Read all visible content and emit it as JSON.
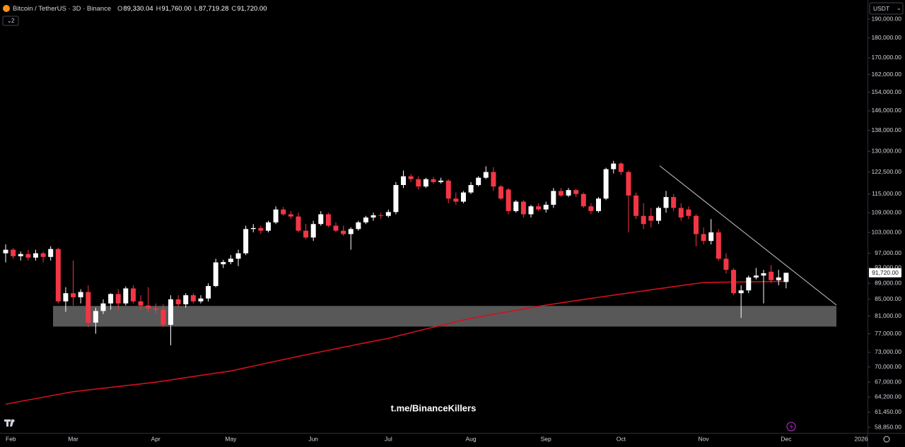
{
  "chart_data": {
    "type": "candlestick",
    "title": "Bitcoin / TetherUS · 3D · Binance",
    "legend": [
      {
        "key": "O",
        "label": "89,330.04"
      },
      {
        "key": "H",
        "label": "91,760.00"
      },
      {
        "key": "L",
        "label": "87,719.28"
      },
      {
        "key": "C",
        "label": "91,720.00"
      }
    ],
    "indicator_count": "2",
    "currency": "USDT",
    "watermark": "t.me/BinanceKillers",
    "up_color": "#ffffff",
    "down_color": "#f23645",
    "log_scale": true,
    "grid": false,
    "ylim": [
      57930,
      200700
    ],
    "yticks": [
      {
        "value": 190000,
        "label": "190,000.00"
      },
      {
        "value": 180000,
        "label": "180,000.00"
      },
      {
        "value": 170000,
        "label": "170,000.00"
      },
      {
        "value": 162000,
        "label": "162,000.00"
      },
      {
        "value": 154000,
        "label": "154,000.00"
      },
      {
        "value": 146000,
        "label": "146,000.00"
      },
      {
        "value": 138000,
        "label": "138,000.00"
      },
      {
        "value": 130000,
        "label": "130,000.00"
      },
      {
        "value": 122500,
        "label": "122,500.00"
      },
      {
        "value": 115000,
        "label": "115,000.00"
      },
      {
        "value": 109000,
        "label": "109,000.00"
      },
      {
        "value": 103000,
        "label": "103,000.00"
      },
      {
        "value": 97000,
        "label": "97,000.00"
      },
      {
        "value": 93000,
        "label": "93,000.00"
      },
      {
        "value": 89000,
        "label": "89,000.00"
      },
      {
        "value": 85000,
        "label": "85,000.00"
      },
      {
        "value": 81000,
        "label": "81,000.00"
      },
      {
        "value": 77000,
        "label": "77,000.00"
      },
      {
        "value": 73000,
        "label": "73,000.00"
      },
      {
        "value": 70000,
        "label": "70,000.00"
      },
      {
        "value": 67000,
        "label": "67,000.00"
      },
      {
        "value": 64200,
        "label": "64,200.00"
      },
      {
        "value": 61450,
        "label": "61,450.00"
      },
      {
        "value": 58850,
        "label": "58,850.00"
      }
    ],
    "last_price": {
      "value": 91720,
      "label": "91,720.00"
    },
    "categories": [
      "Feb",
      null,
      null,
      null,
      null,
      null,
      null,
      null,
      null,
      "Mar",
      null,
      null,
      null,
      null,
      null,
      null,
      null,
      null,
      null,
      null,
      "Apr",
      null,
      null,
      null,
      null,
      null,
      null,
      null,
      null,
      null,
      "May",
      null,
      null,
      null,
      null,
      null,
      null,
      null,
      null,
      null,
      null,
      "Jun",
      null,
      null,
      null,
      null,
      null,
      null,
      null,
      null,
      null,
      "Jul",
      null,
      null,
      null,
      null,
      null,
      null,
      null,
      null,
      null,
      null,
      "Aug",
      null,
      null,
      null,
      null,
      null,
      null,
      null,
      null,
      null,
      "Sep",
      null,
      null,
      null,
      null,
      null,
      null,
      null,
      null,
      null,
      "Oct",
      null,
      null,
      null,
      null,
      null,
      null,
      null,
      null,
      null,
      null,
      "Nov",
      null,
      null,
      null,
      null,
      null,
      null,
      null,
      null,
      null,
      null,
      "Dec",
      null,
      null,
      null,
      null,
      null,
      null,
      null,
      null,
      null,
      "2026"
    ],
    "open": [
      97000,
      98000,
      96200,
      96800,
      95800,
      97000,
      96000,
      98200,
      84500,
      86500,
      85500,
      86800,
      79500,
      82200,
      84000,
      86300,
      84000,
      87700,
      84500,
      83500,
      82800,
      82500,
      79000,
      85000,
      83800,
      86000,
      84500,
      85200,
      88300,
      94000,
      94600,
      95500,
      97000,
      104000,
      104300,
      103500,
      106000,
      110000,
      108500,
      107800,
      103500,
      101500,
      105500,
      108500,
      105000,
      103500,
      102500,
      104000,
      106000,
      107500,
      108200,
      108000,
      109200,
      118000,
      121000,
      120000,
      117500,
      120000,
      119000,
      119500,
      113500,
      112500,
      115500,
      118000,
      120500,
      122500,
      117500,
      116500,
      109500,
      112500,
      108500,
      111000,
      110000,
      111500,
      116000,
      114500,
      116300,
      115000,
      111000,
      109500,
      113500,
      123500,
      125500,
      122500,
      114500,
      108000,
      108000,
      106500,
      110500,
      114000,
      110500,
      110000,
      108000,
      102500,
      100500,
      103000,
      95500,
      92500,
      86500,
      87200,
      90500,
      91000,
      92000,
      89800,
      89330.04,
      null,
      null,
      null,
      null,
      null,
      null,
      null,
      null,
      null,
      null
    ],
    "high": [
      99500,
      98500,
      97500,
      98000,
      98000,
      97500,
      99000,
      98600,
      88000,
      95000,
      87500,
      88500,
      83000,
      85000,
      86500,
      87500,
      88200,
      88500,
      86000,
      88000,
      84000,
      83800,
      86000,
      86000,
      86500,
      86500,
      86000,
      89000,
      95500,
      95200,
      96500,
      98000,
      105000,
      105500,
      105000,
      106500,
      111000,
      110800,
      109500,
      109000,
      105500,
      106500,
      109500,
      109000,
      106000,
      105000,
      104500,
      106500,
      108000,
      109000,
      109000,
      110000,
      119000,
      123000,
      121800,
      121000,
      120500,
      120800,
      120500,
      120000,
      115500,
      116000,
      119000,
      121000,
      124500,
      124200,
      118000,
      117000,
      113000,
      113000,
      111500,
      112000,
      112500,
      117000,
      117000,
      117000,
      116800,
      115500,
      112000,
      114000,
      124000,
      126500,
      126000,
      123000,
      115500,
      112000,
      110500,
      111000,
      116000,
      115000,
      112000,
      111000,
      108500,
      104500,
      107000,
      104000,
      97000,
      93000,
      88500,
      91000,
      93000,
      92500,
      93800,
      92500,
      91760,
      null,
      null,
      null,
      null,
      null,
      null,
      null,
      null,
      null,
      null
    ],
    "low": [
      94500,
      95500,
      95000,
      95000,
      95000,
      94500,
      95000,
      84000,
      82000,
      83500,
      84000,
      78500,
      77000,
      81500,
      82500,
      82500,
      83500,
      84000,
      82500,
      82000,
      81500,
      78500,
      74500,
      83000,
      83000,
      84000,
      84000,
      84500,
      88000,
      93000,
      94000,
      93500,
      96500,
      103000,
      102500,
      103000,
      105500,
      108000,
      107000,
      103000,
      101000,
      100500,
      105000,
      104500,
      103000,
      102000,
      98000,
      103500,
      105500,
      106500,
      107000,
      107500,
      108500,
      117000,
      119000,
      116500,
      117000,
      118500,
      118500,
      112000,
      111500,
      112000,
      115000,
      117500,
      120000,
      116000,
      113000,
      108500,
      109000,
      107500,
      107500,
      109500,
      109000,
      110500,
      114000,
      114000,
      114000,
      110500,
      108500,
      109000,
      113000,
      122000,
      121500,
      103000,
      107000,
      104000,
      104500,
      105500,
      109000,
      109500,
      106500,
      107000,
      99000,
      99500,
      99500,
      95000,
      91500,
      86000,
      80600,
      86500,
      90000,
      84000,
      89000,
      88500,
      87719.28,
      null,
      null,
      null,
      null,
      null,
      null,
      null,
      null,
      null,
      null
    ],
    "close": [
      98000,
      96200,
      96800,
      95800,
      97000,
      96000,
      98200,
      84500,
      86500,
      85500,
      86800,
      79500,
      82200,
      84000,
      86300,
      84000,
      87700,
      84500,
      83500,
      82800,
      82500,
      79000,
      85000,
      83800,
      86000,
      84500,
      85200,
      88300,
      94500,
      94600,
      95500,
      97000,
      104000,
      104300,
      103500,
      106000,
      110000,
      108500,
      107800,
      103500,
      101500,
      105500,
      108500,
      105000,
      103500,
      102500,
      104000,
      106000,
      107500,
      108200,
      108000,
      109200,
      118000,
      121000,
      120000,
      117500,
      120000,
      119000,
      119500,
      113500,
      112500,
      115500,
      118000,
      120500,
      122500,
      117500,
      113500,
      109500,
      112500,
      108500,
      111000,
      110000,
      111500,
      116000,
      114500,
      116300,
      115000,
      111000,
      109500,
      113500,
      123500,
      125500,
      122500,
      114500,
      108000,
      105500,
      106500,
      110500,
      114000,
      110500,
      107500,
      108000,
      102500,
      100500,
      103000,
      95500,
      92500,
      86500,
      87200,
      90500,
      91000,
      91600,
      89800,
      90500,
      91720,
      null,
      null,
      null,
      null,
      null,
      null,
      null,
      null,
      null,
      null
    ],
    "ma": {
      "color": "#d3101e",
      "values": [
        62900,
        63160,
        63410,
        63670,
        63920,
        64180,
        64430,
        64690,
        64940,
        65200,
        65360,
        65530,
        65690,
        65850,
        66020,
        66180,
        66350,
        66510,
        66670,
        66840,
        67000,
        67220,
        67440,
        67660,
        67880,
        68100,
        68320,
        68540,
        68760,
        68980,
        69200,
        69530,
        69850,
        70180,
        70510,
        70840,
        71160,
        71490,
        71820,
        72150,
        72470,
        72800,
        73120,
        73440,
        73760,
        74080,
        74400,
        74720,
        75040,
        75360,
        75680,
        76000,
        76410,
        76820,
        77230,
        77640,
        78050,
        78450,
        78860,
        79270,
        79680,
        80090,
        80500,
        80810,
        81120,
        81430,
        81740,
        82050,
        82360,
        82670,
        82980,
        83290,
        83600,
        83870,
        84140,
        84410,
        84680,
        84950,
        85220,
        85490,
        85760,
        86030,
        86300,
        86560,
        86830,
        87090,
        87360,
        87620,
        87880,
        88150,
        88410,
        88680,
        88940,
        89200,
        89230,
        89260,
        89280,
        89310,
        89340,
        89360,
        89390,
        89420,
        89450,
        89470,
        89500,
        null,
        null,
        null,
        null,
        null,
        null,
        null,
        null,
        null,
        null
      ]
    },
    "zone": {
      "color": "#5d5d5d",
      "low": 78600,
      "high": 83400
    },
    "trendline": {
      "color": "#c8c8c8",
      "values": [
        124700,
        83600
      ]
    }
  }
}
